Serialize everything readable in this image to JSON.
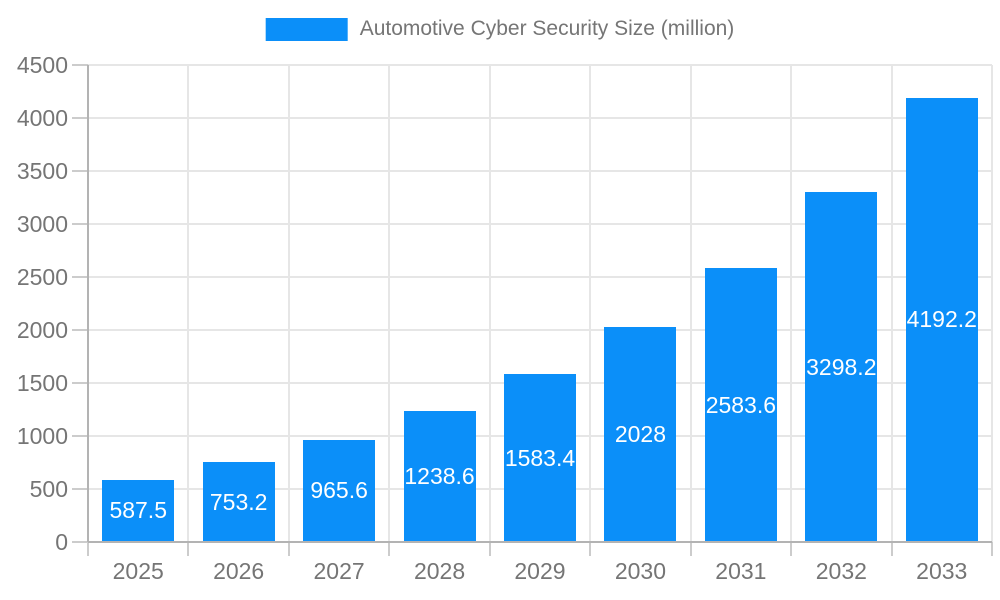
{
  "chart_data": {
    "type": "bar",
    "title": "Automotive Cyber Security Size (million)",
    "series_name": "Automotive Cyber Security Size (million)",
    "categories": [
      "2025",
      "2026",
      "2027",
      "2028",
      "2029",
      "2030",
      "2031",
      "2032",
      "2033"
    ],
    "values": [
      587.5,
      753.2,
      965.6,
      1238.6,
      1583.4,
      2028,
      2583.6,
      3298.2,
      4192.2
    ],
    "value_labels": [
      "587.5",
      "753.2",
      "965.6",
      "1238.6",
      "1583.4",
      "2028",
      "2583.6",
      "3298.2",
      "4192.2"
    ],
    "xlabel": "",
    "ylabel": "",
    "ylim": [
      0,
      4500
    ],
    "ytick_step": 500,
    "ytick_labels": [
      "0",
      "500",
      "1000",
      "1500",
      "2000",
      "2500",
      "3000",
      "3500",
      "4000",
      "4500"
    ],
    "grid": true,
    "legend_position": "top",
    "colors": {
      "bar": "#0b8ff9",
      "value_label": "#ffffff",
      "axis_text": "#757575",
      "gridline": "#e6e6e6",
      "axis_line": "#b3b3b3",
      "tick": "#cccccc",
      "background": "#ffffff"
    }
  }
}
